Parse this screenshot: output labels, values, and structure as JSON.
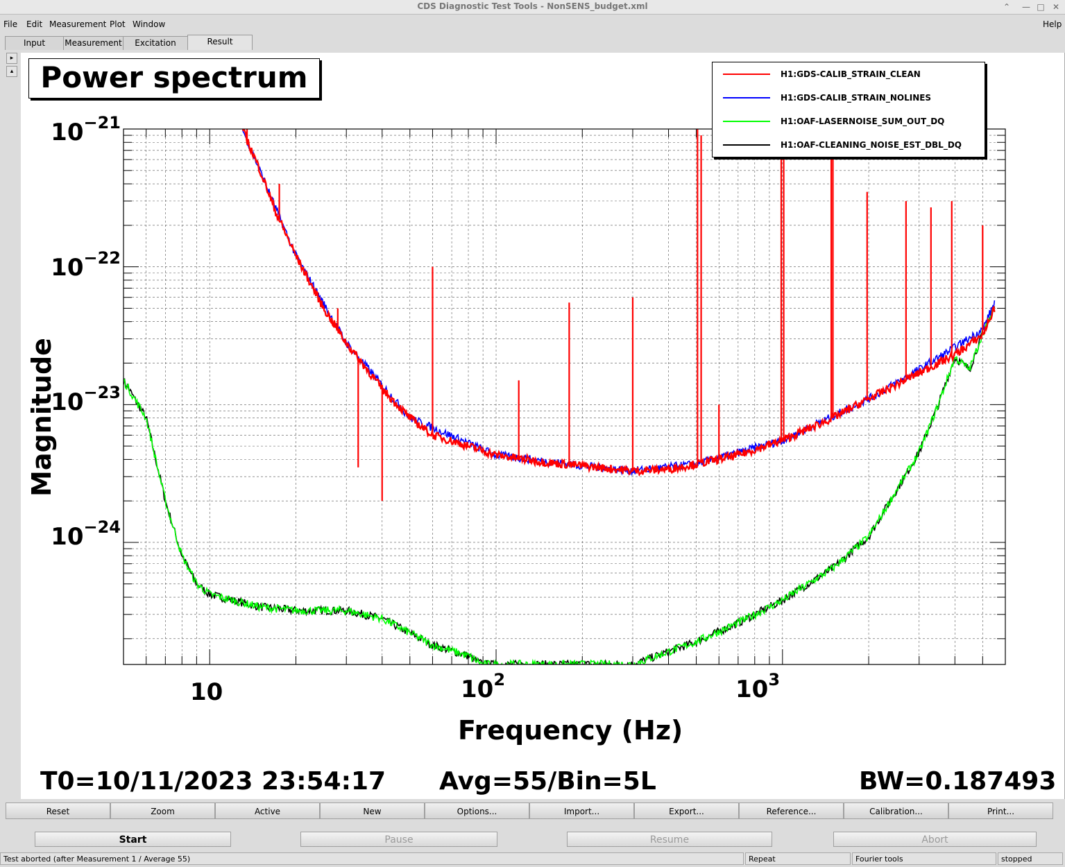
{
  "window": {
    "title": "CDS Diagnostic Test Tools - NonSENS_budget.xml",
    "buttons": [
      "⌃",
      "—",
      "□",
      "✕"
    ]
  },
  "menubar": {
    "items": [
      "File",
      "Edit",
      "Measurement",
      "Plot",
      "Window"
    ],
    "help": "Help"
  },
  "tabs": [
    "Input",
    "Measurement",
    "Excitation",
    "Result"
  ],
  "active_tab": "Result",
  "side_arrows": [
    "▸",
    "▴"
  ],
  "plot": {
    "title": "Power spectrum",
    "xlabel": "Frequency (Hz)",
    "ylabel": "Magnitude",
    "x_ticks": [
      {
        "base": "10",
        "exp": ""
      },
      {
        "base": "10",
        "exp": "2"
      },
      {
        "base": "10",
        "exp": "3"
      }
    ],
    "y_ticks": [
      {
        "base": "10",
        "exp": "−21"
      },
      {
        "base": "10",
        "exp": "−22"
      },
      {
        "base": "10",
        "exp": "−23"
      },
      {
        "base": "10",
        "exp": "−24"
      }
    ],
    "legend": [
      {
        "name": "H1:GDS-CALIB_STRAIN_CLEAN",
        "color": "#ff0000"
      },
      {
        "name": "H1:GDS-CALIB_STRAIN_NOLINES",
        "color": "#0000ff"
      },
      {
        "name": "H1:OAF-LASERNOISE_SUM_OUT_DQ",
        "color": "#00ff00"
      },
      {
        "name": "H1:OAF-CLEANING_NOISE_EST_DBL_DQ",
        "color": "#000000"
      }
    ],
    "t0": "T0=10/11/2023 23:54:17",
    "avg": "Avg=55/Bin=5L",
    "bw": "BW=0.187493"
  },
  "chart_data": {
    "type": "line",
    "title": "Power spectrum",
    "xlabel": "Frequency (Hz)",
    "ylabel": "Magnitude",
    "x_scale": "log",
    "y_scale": "log",
    "xlim": [
      5,
      6000
    ],
    "ylim": [
      1.3e-25,
      1e-21
    ],
    "grid": true,
    "legend_position": "top-right",
    "series": [
      {
        "name": "H1:GDS-CALIB_STRAIN_CLEAN",
        "color": "#ff0000",
        "x": [
          13,
          15,
          17,
          20,
          25,
          30,
          40,
          50,
          60,
          80,
          100,
          150,
          200,
          300,
          400,
          500,
          700,
          1000,
          1500,
          2000,
          3000,
          4000,
          5000,
          5500
        ],
        "y": [
          1e-21,
          5e-22,
          2.5e-22,
          1.2e-22,
          5e-23,
          2.8e-23,
          1.3e-23,
          8e-24,
          6e-24,
          5e-24,
          4.3e-24,
          3.8e-24,
          3.6e-24,
          3.3e-24,
          3.4e-24,
          3.7e-24,
          4.3e-24,
          5.5e-24,
          8e-24,
          1.1e-23,
          1.7e-23,
          2.3e-23,
          3.2e-23,
          5e-23
        ]
      },
      {
        "name": "H1:GDS-CALIB_STRAIN_NOLINES",
        "color": "#0000ff",
        "x": [
          13,
          20,
          30,
          50,
          100,
          200,
          300,
          500,
          1000,
          2000,
          3000,
          4000,
          5000,
          5500
        ],
        "y": [
          1e-21,
          1.2e-22,
          2.8e-23,
          8e-24,
          4.3e-24,
          3.6e-24,
          3.3e-24,
          3.7e-24,
          5.5e-24,
          1.1e-23,
          1.8e-23,
          2.6e-23,
          3.5e-23,
          5.5e-23
        ]
      },
      {
        "name": "H1:OAF-LASERNOISE_SUM_OUT_DQ",
        "color": "#00ff00",
        "x": [
          5,
          6,
          7,
          8,
          9,
          10,
          12,
          15,
          20,
          30,
          40,
          50,
          60,
          80,
          90,
          300,
          500,
          700,
          1000,
          1500,
          2000,
          3000,
          3500,
          4000,
          4500,
          5000,
          5500
        ],
        "y": [
          1.5e-23,
          8e-24,
          2e-24,
          8e-25,
          5e-25,
          4.2e-25,
          3.8e-25,
          3.4e-25,
          3.2e-25,
          3.2e-25,
          2.8e-25,
          2.2e-25,
          1.8e-25,
          1.5e-25,
          1.3e-25,
          1.3e-25,
          1.9e-25,
          2.6e-25,
          3.8e-25,
          6.5e-25,
          1.1e-24,
          4.5e-24,
          1e-23,
          2.2e-23,
          1.8e-23,
          3.3e-23,
          5e-23
        ]
      },
      {
        "name": "H1:OAF-CLEANING_NOISE_EST_DBL_DQ",
        "color": "#000000",
        "x": [
          5,
          6,
          7,
          8,
          9,
          10,
          12,
          15,
          20,
          30,
          40,
          50,
          60,
          80,
          90,
          300,
          500,
          700,
          1000,
          1500,
          2000,
          3000,
          3500,
          4000,
          4500,
          5000,
          5500
        ],
        "y": [
          1.5e-23,
          8e-24,
          2e-24,
          8e-25,
          5e-25,
          4.2e-25,
          3.8e-25,
          3.4e-25,
          3.2e-25,
          3.2e-25,
          2.8e-25,
          2.2e-25,
          1.8e-25,
          1.5e-25,
          1.3e-25,
          1.3e-25,
          1.9e-25,
          2.6e-25,
          3.8e-25,
          6.5e-25,
          1.1e-24,
          4.5e-24,
          1e-23,
          2.2e-23,
          1.8e-23,
          3.3e-23,
          5e-23
        ]
      }
    ],
    "spectral_lines": [
      {
        "f": 13.5,
        "y": 1e-21
      },
      {
        "f": 17.5,
        "y": 4e-22
      },
      {
        "f": 28,
        "y": 5e-23
      },
      {
        "f": 33,
        "y": 3.5e-24
      },
      {
        "f": 40,
        "y": 2e-24
      },
      {
        "f": 60,
        "y": 1e-22
      },
      {
        "f": 120,
        "y": 1.5e-23
      },
      {
        "f": 180,
        "y": 5.5e-23
      },
      {
        "f": 300,
        "y": 6e-23
      },
      {
        "f": 505,
        "y": 1e-21
      },
      {
        "f": 520,
        "y": 9e-22
      },
      {
        "f": 600,
        "y": 1e-23
      },
      {
        "f": 990,
        "y": 8e-22
      },
      {
        "f": 1010,
        "y": 1e-21
      },
      {
        "f": 1480,
        "y": 7e-22
      },
      {
        "f": 1500,
        "y": 1e-21
      },
      {
        "f": 1975,
        "y": 3.5e-22
      },
      {
        "f": 2700,
        "y": 3e-22
      },
      {
        "f": 3300,
        "y": 2.7e-22
      },
      {
        "f": 3900,
        "y": 3e-22
      },
      {
        "f": 5000,
        "y": 2e-22
      }
    ]
  },
  "plot_toolbar": [
    "Reset",
    "Zoom",
    "Active",
    "New",
    "Options...",
    "Import...",
    "Export...",
    "Reference...",
    "Calibration...",
    "Print..."
  ],
  "controls": {
    "start": "Start",
    "pause": "Pause",
    "resume": "Resume",
    "abort": "Abort"
  },
  "statusbar": {
    "message": "Test aborted (after Measurement 1 / Average 55)",
    "repeat": "Repeat",
    "tools": "Fourier tools",
    "state": "stopped"
  }
}
